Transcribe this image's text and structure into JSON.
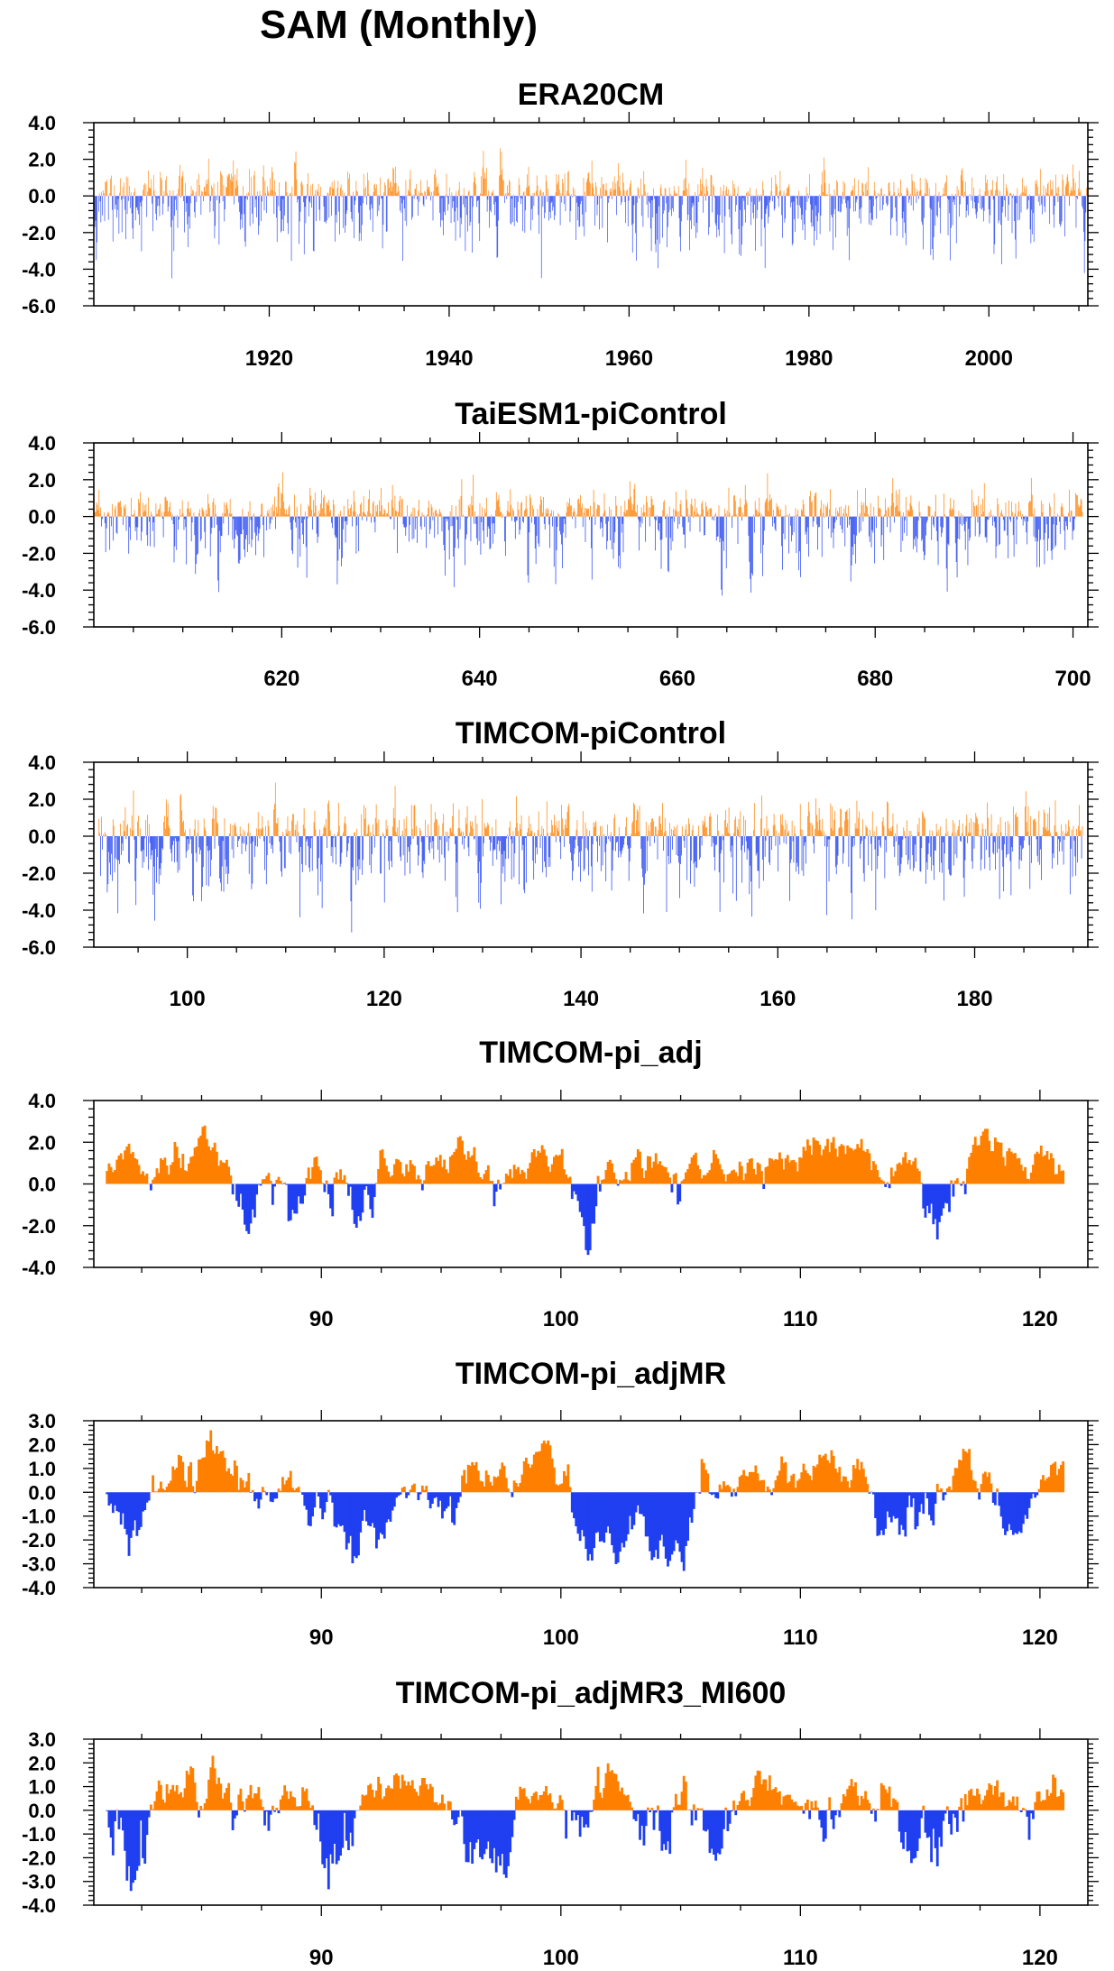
{
  "figure": {
    "title": "SAM (Monthly)"
  },
  "colors": {
    "positive": "#ff8000",
    "negative": "#1f3ff0",
    "axis": "#000000"
  },
  "chart_data": [
    {
      "type": "bar",
      "title": "ERA20CM",
      "xlabel": "",
      "ylabel": "",
      "xlim": [
        1900.5,
        2011
      ],
      "ylim": [
        -6.0,
        4.0
      ],
      "yticks": [
        "4.0",
        "2.0",
        "0.0",
        "-2.0",
        "-4.0",
        "-6.0"
      ],
      "ytick_values": [
        4,
        2,
        0,
        -2,
        -4,
        -6
      ],
      "xticks": [
        "1920",
        "1940",
        "1960",
        "1980",
        "2000"
      ],
      "xtick_values": [
        1920,
        1940,
        1960,
        1980,
        2000
      ],
      "series": [
        {
          "x_range": [
            1900.5,
            2011
          ],
          "samples": 1320,
          "pos_amp": 0.75,
          "neg_amp": 0.75,
          "max": 2.6,
          "min": -4.5,
          "seed": 11
        }
      ]
    },
    {
      "type": "bar",
      "title": "TaiESM1-piControl",
      "xlabel": "",
      "ylabel": "",
      "xlim": [
        601,
        701.5
      ],
      "ylim": [
        -6.0,
        4.0
      ],
      "yticks": [
        "4.0",
        "2.0",
        "0.0",
        "-2.0",
        "-4.0",
        "-6.0"
      ],
      "ytick_values": [
        4,
        2,
        0,
        -2,
        -4,
        -6
      ],
      "xticks": [
        "620",
        "640",
        "660",
        "680",
        "700"
      ],
      "xtick_values": [
        620,
        640,
        660,
        680,
        700
      ],
      "series": [
        {
          "x_range": [
            601,
            701
          ],
          "samples": 1200,
          "pos_amp": 0.75,
          "neg_amp": 0.8,
          "max": 2.4,
          "min": -4.3,
          "seed": 23
        }
      ]
    },
    {
      "type": "bar",
      "title": "TIMCOM-piControl",
      "xlabel": "",
      "ylabel": "",
      "xlim": [
        90.5,
        191.5
      ],
      "ylim": [
        -6.0,
        4.0
      ],
      "yticks": [
        "4.0",
        "2.0",
        "0.0",
        "-2.0",
        "-4.0",
        "-6.0"
      ],
      "ytick_values": [
        4,
        2,
        0,
        -2,
        -4,
        -6
      ],
      "xticks": [
        "100",
        "120",
        "140",
        "160",
        "180"
      ],
      "xtick_values": [
        100,
        120,
        140,
        160,
        180
      ],
      "series": [
        {
          "x_range": [
            91,
            191
          ],
          "samples": 1200,
          "pos_amp": 0.85,
          "neg_amp": 0.8,
          "max": 2.9,
          "min": -5.2,
          "seed": 37
        }
      ]
    },
    {
      "type": "area",
      "title": "TIMCOM-pi_adj",
      "xlabel": "",
      "ylabel": "",
      "xlim": [
        80.5,
        122
      ],
      "ylim": [
        -4.0,
        4.0
      ],
      "yticks": [
        "4.0",
        "2.0",
        "0.0",
        "-2.0",
        "-4.0"
      ],
      "ytick_values": [
        4,
        2,
        0,
        -2,
        -4
      ],
      "xticks": [
        "90",
        "100",
        "110",
        "120"
      ],
      "xtick_values": [
        90,
        100,
        110,
        120
      ],
      "series": [
        {
          "x_range": [
            81,
            121
          ],
          "samples": 480,
          "pos_amp": 0.85,
          "neg_amp": 0.95,
          "max": 2.8,
          "min": -3.4,
          "seed": 51
        }
      ]
    },
    {
      "type": "area",
      "title": "TIMCOM-pi_adjMR",
      "xlabel": "",
      "ylabel": "",
      "xlim": [
        80.5,
        122
      ],
      "ylim": [
        -4.0,
        3.0
      ],
      "yticks": [
        "3.0",
        "2.0",
        "1.0",
        "0.0",
        "-1.0",
        "-2.0",
        "-3.0",
        "-4.0"
      ],
      "ytick_values": [
        3,
        2,
        1,
        0,
        -1,
        -2,
        -3,
        -4
      ],
      "xticks": [
        "90",
        "100",
        "110",
        "120"
      ],
      "xtick_values": [
        90,
        100,
        110,
        120
      ],
      "series": [
        {
          "x_range": [
            81,
            121
          ],
          "samples": 480,
          "pos_amp": 0.85,
          "neg_amp": 1.0,
          "max": 2.6,
          "min": -3.3,
          "seed": 67
        }
      ]
    },
    {
      "type": "area",
      "title": "TIMCOM-pi_adjMR3_MI600",
      "xlabel": "",
      "ylabel": "",
      "xlim": [
        80.5,
        122
      ],
      "ylim": [
        -4.0,
        3.0
      ],
      "yticks": [
        "3.0",
        "2.0",
        "1.0",
        "0.0",
        "-1.0",
        "-2.0",
        "-3.0",
        "-4.0"
      ],
      "ytick_values": [
        3,
        2,
        1,
        0,
        -1,
        -2,
        -3,
        -4
      ],
      "xticks": [
        "90",
        "100",
        "110",
        "120"
      ],
      "xtick_values": [
        90,
        100,
        110,
        120
      ],
      "series": [
        {
          "x_range": [
            81,
            121
          ],
          "samples": 480,
          "pos_amp": 0.85,
          "neg_amp": 1.0,
          "max": 2.3,
          "min": -3.4,
          "seed": 83
        }
      ]
    }
  ]
}
